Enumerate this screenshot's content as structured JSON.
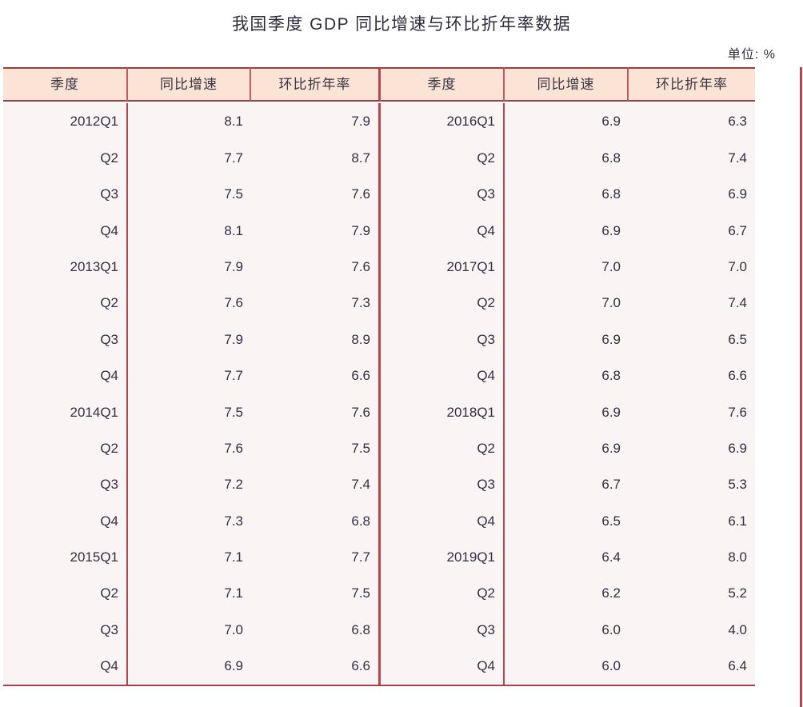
{
  "title": "我国季度 GDP 同比增速与环比折年率数据",
  "unit_label": "单位: %",
  "colors": {
    "accent_red": "#b5464e",
    "header_border_red": "#9e3d44",
    "header_bg": "#fbe3d5",
    "body_bg": "#faf4f4",
    "text": "#332e40"
  },
  "table": {
    "headers": [
      "季度",
      "同比增速",
      "环比折年率",
      "季度",
      "同比增速",
      "环比折年率"
    ],
    "left_rows": [
      [
        "2012Q1",
        "8.1",
        "7.9"
      ],
      [
        "Q2",
        "7.7",
        "8.7"
      ],
      [
        "Q3",
        "7.5",
        "7.6"
      ],
      [
        "Q4",
        "8.1",
        "7.9"
      ],
      [
        "2013Q1",
        "7.9",
        "7.6"
      ],
      [
        "Q2",
        "7.6",
        "7.3"
      ],
      [
        "Q3",
        "7.9",
        "8.9"
      ],
      [
        "Q4",
        "7.7",
        "6.6"
      ],
      [
        "2014Q1",
        "7.5",
        "7.6"
      ],
      [
        "Q2",
        "7.6",
        "7.5"
      ],
      [
        "Q3",
        "7.2",
        "7.4"
      ],
      [
        "Q4",
        "7.3",
        "6.8"
      ],
      [
        "2015Q1",
        "7.1",
        "7.7"
      ],
      [
        "Q2",
        "7.1",
        "7.5"
      ],
      [
        "Q3",
        "7.0",
        "6.8"
      ],
      [
        "Q4",
        "6.9",
        "6.6"
      ]
    ],
    "right_rows": [
      [
        "2016Q1",
        "6.9",
        "6.3"
      ],
      [
        "Q2",
        "6.8",
        "7.4"
      ],
      [
        "Q3",
        "6.8",
        "6.9"
      ],
      [
        "Q4",
        "6.9",
        "6.7"
      ],
      [
        "2017Q1",
        "7.0",
        "7.0"
      ],
      [
        "Q2",
        "7.0",
        "7.4"
      ],
      [
        "Q3",
        "6.9",
        "6.5"
      ],
      [
        "Q4",
        "6.8",
        "6.6"
      ],
      [
        "2018Q1",
        "6.9",
        "7.6"
      ],
      [
        "Q2",
        "6.9",
        "6.9"
      ],
      [
        "Q3",
        "6.7",
        "5.3"
      ],
      [
        "Q4",
        "6.5",
        "6.1"
      ],
      [
        "2019Q1",
        "6.4",
        "8.0"
      ],
      [
        "Q2",
        "6.2",
        "5.2"
      ],
      [
        "Q3",
        "6.0",
        "4.0"
      ],
      [
        "Q4",
        "6.0",
        "6.4"
      ]
    ]
  },
  "chart_data": {
    "type": "table",
    "title": "我国季度GDP同比增速与环比折年率数据",
    "unit": "%",
    "columns": [
      "季度",
      "同比增速",
      "环比折年率"
    ],
    "rows": [
      {
        "quarter": "2012Q1",
        "yoy": 8.1,
        "qoq_annualized": 7.9
      },
      {
        "quarter": "2012Q2",
        "yoy": 7.7,
        "qoq_annualized": 8.7
      },
      {
        "quarter": "2012Q3",
        "yoy": 7.5,
        "qoq_annualized": 7.6
      },
      {
        "quarter": "2012Q4",
        "yoy": 8.1,
        "qoq_annualized": 7.9
      },
      {
        "quarter": "2013Q1",
        "yoy": 7.9,
        "qoq_annualized": 7.6
      },
      {
        "quarter": "2013Q2",
        "yoy": 7.6,
        "qoq_annualized": 7.3
      },
      {
        "quarter": "2013Q3",
        "yoy": 7.9,
        "qoq_annualized": 8.9
      },
      {
        "quarter": "2013Q4",
        "yoy": 7.7,
        "qoq_annualized": 6.6
      },
      {
        "quarter": "2014Q1",
        "yoy": 7.5,
        "qoq_annualized": 7.6
      },
      {
        "quarter": "2014Q2",
        "yoy": 7.6,
        "qoq_annualized": 7.5
      },
      {
        "quarter": "2014Q3",
        "yoy": 7.2,
        "qoq_annualized": 7.4
      },
      {
        "quarter": "2014Q4",
        "yoy": 7.3,
        "qoq_annualized": 6.8
      },
      {
        "quarter": "2015Q1",
        "yoy": 7.1,
        "qoq_annualized": 7.7
      },
      {
        "quarter": "2015Q2",
        "yoy": 7.1,
        "qoq_annualized": 7.5
      },
      {
        "quarter": "2015Q3",
        "yoy": 7.0,
        "qoq_annualized": 6.8
      },
      {
        "quarter": "2015Q4",
        "yoy": 6.9,
        "qoq_annualized": 6.6
      },
      {
        "quarter": "2016Q1",
        "yoy": 6.9,
        "qoq_annualized": 6.3
      },
      {
        "quarter": "2016Q2",
        "yoy": 6.8,
        "qoq_annualized": 7.4
      },
      {
        "quarter": "2016Q3",
        "yoy": 6.8,
        "qoq_annualized": 6.9
      },
      {
        "quarter": "2016Q4",
        "yoy": 6.9,
        "qoq_annualized": 6.7
      },
      {
        "quarter": "2017Q1",
        "yoy": 7.0,
        "qoq_annualized": 7.0
      },
      {
        "quarter": "2017Q2",
        "yoy": 7.0,
        "qoq_annualized": 7.4
      },
      {
        "quarter": "2017Q3",
        "yoy": 6.9,
        "qoq_annualized": 6.5
      },
      {
        "quarter": "2017Q4",
        "yoy": 6.8,
        "qoq_annualized": 6.6
      },
      {
        "quarter": "2018Q1",
        "yoy": 6.9,
        "qoq_annualized": 7.6
      },
      {
        "quarter": "2018Q2",
        "yoy": 6.9,
        "qoq_annualized": 6.9
      },
      {
        "quarter": "2018Q3",
        "yoy": 6.7,
        "qoq_annualized": 5.3
      },
      {
        "quarter": "2018Q4",
        "yoy": 6.5,
        "qoq_annualized": 6.1
      },
      {
        "quarter": "2019Q1",
        "yoy": 6.4,
        "qoq_annualized": 8.0
      },
      {
        "quarter": "2019Q2",
        "yoy": 6.2,
        "qoq_annualized": 5.2
      },
      {
        "quarter": "2019Q3",
        "yoy": 6.0,
        "qoq_annualized": 4.0
      },
      {
        "quarter": "2019Q4",
        "yoy": 6.0,
        "qoq_annualized": 6.4
      }
    ]
  }
}
